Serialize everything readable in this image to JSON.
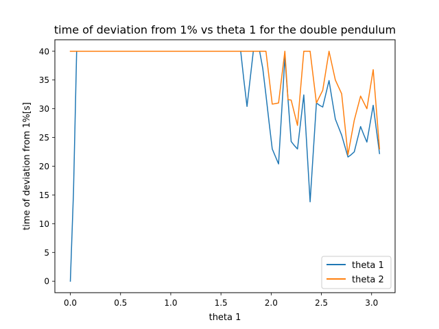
{
  "chart_data": {
    "type": "line",
    "title": "time of deviation from 1% vs theta 1 for the double pendulum",
    "xlabel": "theta 1",
    "ylabel": "time of deviation from 1%[s]",
    "xlim": [
      -0.154,
      3.234
    ],
    "ylim": [
      -2.0,
      42.0
    ],
    "xticks": [
      0.0,
      0.5,
      1.0,
      1.5,
      2.0,
      2.5,
      3.0
    ],
    "xtick_labels": [
      "0.0",
      "0.5",
      "1.0",
      "1.5",
      "2.0",
      "2.5",
      "3.0"
    ],
    "yticks": [
      0,
      5,
      10,
      15,
      20,
      25,
      30,
      35,
      40
    ],
    "ytick_labels": [
      "0",
      "5",
      "10",
      "15",
      "20",
      "25",
      "30",
      "35",
      "40"
    ],
    "grid": false,
    "legend_position": "lower-right",
    "series": [
      {
        "name": "theta 1",
        "color": "#1f77b4",
        "x": [
          0.0,
          0.0314,
          0.0628,
          0.0942,
          0.1257,
          0.1571,
          0.1885,
          0.2199,
          0.2513,
          0.2827,
          0.3142,
          0.3456,
          0.377,
          0.4084,
          0.4398,
          0.4712,
          0.5027,
          0.5341,
          0.5655,
          0.5969,
          0.6283,
          0.6597,
          0.6912,
          0.7226,
          0.754,
          0.7854,
          0.8168,
          0.8482,
          0.8796,
          0.9111,
          0.9425,
          0.9739,
          1.0053,
          1.0367,
          1.0681,
          1.0996,
          1.131,
          1.1624,
          1.1938,
          1.2252,
          1.2566,
          1.2881,
          1.3195,
          1.3509,
          1.3823,
          1.4137,
          1.4451,
          1.4765,
          1.508,
          1.5394,
          1.5708,
          1.6022,
          1.6336,
          1.665,
          1.6965,
          1.7279,
          1.7593,
          1.7907,
          1.8221,
          1.8535,
          1.885,
          1.9164,
          1.9478,
          1.9792,
          2.0106,
          2.042,
          2.0735,
          2.1049,
          2.1363,
          2.1677,
          2.1991,
          2.2305,
          2.2619,
          2.2934,
          2.3248,
          2.3562,
          2.3876,
          2.419,
          2.4504,
          2.4819,
          2.5133,
          2.5447,
          2.5761,
          2.6075,
          2.6389,
          2.6704,
          2.7018,
          2.7332,
          2.7646,
          2.796,
          2.8274,
          2.8588,
          2.8903,
          2.9217,
          2.9531,
          2.9845,
          3.0159,
          3.0473,
          3.0788
        ],
        "y": [
          0.0,
          15.5,
          40.0,
          40.0,
          40.0,
          40.0,
          40.0,
          40.0,
          40.0,
          40.0,
          40.0,
          40.0,
          40.0,
          40.0,
          40.0,
          40.0,
          40.0,
          40.0,
          40.0,
          40.0,
          40.0,
          40.0,
          40.0,
          40.0,
          40.0,
          40.0,
          40.0,
          40.0,
          40.0,
          40.0,
          40.0,
          40.0,
          40.0,
          40.0,
          40.0,
          40.0,
          40.0,
          40.0,
          40.0,
          40.0,
          40.0,
          40.0,
          40.0,
          40.0,
          40.0,
          40.0,
          40.0,
          40.0,
          40.0,
          40.0,
          40.0,
          40.0,
          40.0,
          40.0,
          40.0,
          35.0,
          30.4,
          35.2,
          40.0,
          40.0,
          40.0,
          37.0,
          32.4,
          27.6,
          23.0,
          21.7,
          20.4,
          29.6,
          38.9,
          31.6,
          24.3,
          23.6,
          23.0,
          27.7,
          32.4,
          23.1,
          13.8,
          22.4,
          31.0,
          30.6,
          30.3,
          32.6,
          34.9,
          31.5,
          28.2,
          26.8,
          25.4,
          23.5,
          21.6,
          22.0,
          22.5,
          24.7,
          26.9,
          25.5,
          24.2,
          27.4,
          30.6,
          26.4,
          22.2
        ]
      },
      {
        "name": "theta 2",
        "color": "#ff7f0e",
        "x": [
          0.0,
          0.0314,
          0.0628,
          0.0942,
          0.1257,
          0.1571,
          0.1885,
          0.2199,
          0.2513,
          0.2827,
          0.3142,
          0.3456,
          0.377,
          0.4084,
          0.4398,
          0.4712,
          0.5027,
          0.5341,
          0.5655,
          0.5969,
          0.6283,
          0.6597,
          0.6912,
          0.7226,
          0.754,
          0.7854,
          0.8168,
          0.8482,
          0.8796,
          0.9111,
          0.9425,
          0.9739,
          1.0053,
          1.0367,
          1.0681,
          1.0996,
          1.131,
          1.1624,
          1.1938,
          1.2252,
          1.2566,
          1.2881,
          1.3195,
          1.3509,
          1.3823,
          1.4137,
          1.4451,
          1.4765,
          1.508,
          1.5394,
          1.5708,
          1.6022,
          1.6336,
          1.665,
          1.6965,
          1.7279,
          1.7593,
          1.7907,
          1.8221,
          1.8535,
          1.885,
          1.9164,
          1.9478,
          1.9792,
          2.0106,
          2.042,
          2.0735,
          2.1049,
          2.1363,
          2.1677,
          2.1991,
          2.2305,
          2.2619,
          2.2934,
          2.3248,
          2.3562,
          2.3876,
          2.419,
          2.4504,
          2.4819,
          2.5133,
          2.5447,
          2.5761,
          2.6075,
          2.6389,
          2.6704,
          2.7018,
          2.7332,
          2.7646,
          2.796,
          2.8274,
          2.8588,
          2.8903,
          2.9217,
          2.9531,
          2.9845,
          3.0159,
          3.0473,
          3.0788
        ],
        "y": [
          40.0,
          40.0,
          40.0,
          40.0,
          40.0,
          40.0,
          40.0,
          40.0,
          40.0,
          40.0,
          40.0,
          40.0,
          40.0,
          40.0,
          40.0,
          40.0,
          40.0,
          40.0,
          40.0,
          40.0,
          40.0,
          40.0,
          40.0,
          40.0,
          40.0,
          40.0,
          40.0,
          40.0,
          40.0,
          40.0,
          40.0,
          40.0,
          40.0,
          40.0,
          40.0,
          40.0,
          40.0,
          40.0,
          40.0,
          40.0,
          40.0,
          40.0,
          40.0,
          40.0,
          40.0,
          40.0,
          40.0,
          40.0,
          40.0,
          40.0,
          40.0,
          40.0,
          40.0,
          40.0,
          40.0,
          40.0,
          40.0,
          40.0,
          40.0,
          40.0,
          40.0,
          40.0,
          40.0,
          35.4,
          30.8,
          30.9,
          31.0,
          35.5,
          40.0,
          31.6,
          31.5,
          29.3,
          27.1,
          33.6,
          40.0,
          40.0,
          40.0,
          35.5,
          31.0,
          32.1,
          33.2,
          36.6,
          40.0,
          37.5,
          35.0,
          33.8,
          32.6,
          27.3,
          22.0,
          25.0,
          28.0,
          30.1,
          32.2,
          31.1,
          30.0,
          33.4,
          36.8,
          29.9,
          23.0
        ]
      }
    ]
  }
}
